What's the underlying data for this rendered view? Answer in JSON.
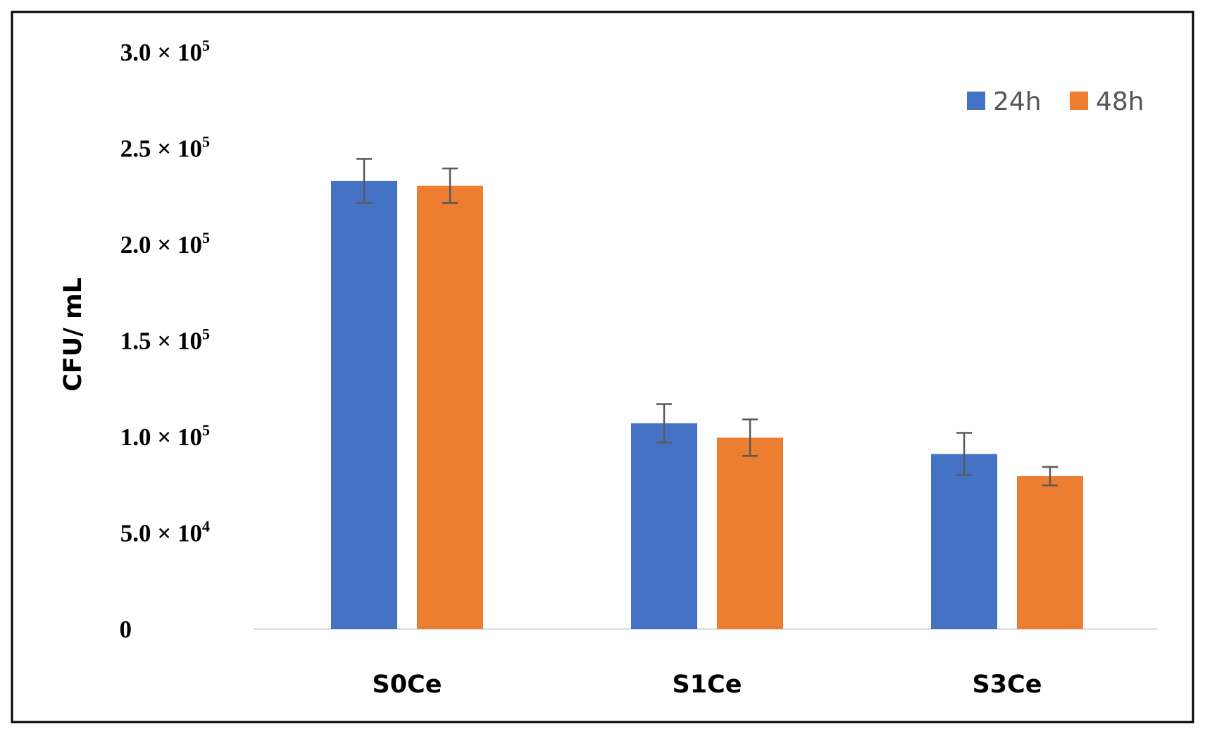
{
  "chart_data": {
    "type": "bar",
    "title": "",
    "xlabel": "",
    "ylabel": "CFU/ mL",
    "ylim": [
      0,
      300000
    ],
    "grid": false,
    "legend_position": "top-right",
    "categories": [
      "S0Ce",
      "S1Ce",
      "S3Ce"
    ],
    "y_tick_labels": [
      {
        "value": 0,
        "mantissa": "0",
        "exponent": ""
      },
      {
        "value": 50000,
        "mantissa": "5.0",
        "exponent": "4"
      },
      {
        "value": 100000,
        "mantissa": "1.0",
        "exponent": "5"
      },
      {
        "value": 150000,
        "mantissa": "1.5",
        "exponent": "5"
      },
      {
        "value": 200000,
        "mantissa": "2.0",
        "exponent": "5"
      },
      {
        "value": 250000,
        "mantissa": "2.5",
        "exponent": "5"
      },
      {
        "value": 300000,
        "mantissa": "3.0",
        "exponent": "5"
      }
    ],
    "series": [
      {
        "name": "24h",
        "color": "#4472C4",
        "values": [
          233000,
          107000,
          91000
        ],
        "errors": [
          11500,
          10000,
          11000
        ]
      },
      {
        "name": "48h",
        "color": "#ED7D31",
        "values": [
          230500,
          99500,
          79500
        ],
        "errors": [
          9000,
          9500,
          4800
        ]
      }
    ]
  }
}
